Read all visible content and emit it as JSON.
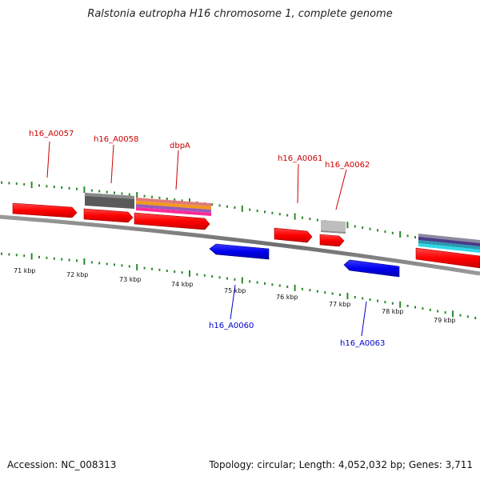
{
  "header": {
    "title": "Ralstonia eutropha H16 chromosome 1, complete genome"
  },
  "footer": {
    "accession": "Accession: NC_008313",
    "topology": "Topology: circular; Length: 4,052,032 bp; Genes: 3,711"
  },
  "ruler": {
    "labels": [
      "71 kbp",
      "72 kbp",
      "73 kbp",
      "74 kbp",
      "75 kbp",
      "76 kbp",
      "77 kbp",
      "78 kbp",
      "79 kbp"
    ]
  },
  "gene_labels": {
    "forward": [
      "h16_A0057",
      "h16_A0058",
      "dbpA",
      "h16_A0061",
      "h16_A0062"
    ],
    "reverse": [
      "h16_A0060",
      "h16_A0063"
    ]
  },
  "colors": {
    "forward_label": "#cc0000",
    "reverse_label": "#0000cc",
    "forward_gene": "#ff0000",
    "reverse_gene": "#0000ee",
    "tick": "#2a8a2a",
    "backbone": "#888888"
  }
}
